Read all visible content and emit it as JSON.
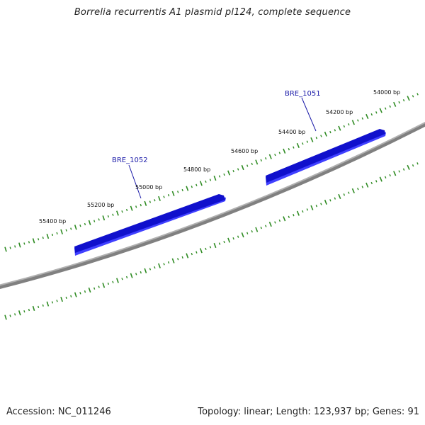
{
  "title": "Borrelia recurrentis A1 plasmid pl124, complete sequence",
  "footer": {
    "accession": "Accession: NC_011246",
    "summary": "Topology: linear; Length: 123,937 bp; Genes: 91"
  },
  "colors": {
    "backbone": "#808080",
    "backbone_highlight": "#b0b0b0",
    "gene_top": "#1010cc",
    "gene_side": "#0000ff",
    "gene_front": "#4040ff",
    "ticks": "#2e8b22",
    "gene_label": "#1a1aa8",
    "leader": "#1a1aa8"
  },
  "scale": {
    "tick_labels": [
      "54000 bp",
      "54200 bp",
      "54400 bp",
      "54600 bp",
      "54800 bp",
      "55000 bp",
      "55200 bp",
      "55400 bp"
    ]
  },
  "genes": [
    {
      "name": "BRE_1051",
      "strand": "forward"
    },
    {
      "name": "BRE_1052",
      "strand": "forward"
    }
  ]
}
